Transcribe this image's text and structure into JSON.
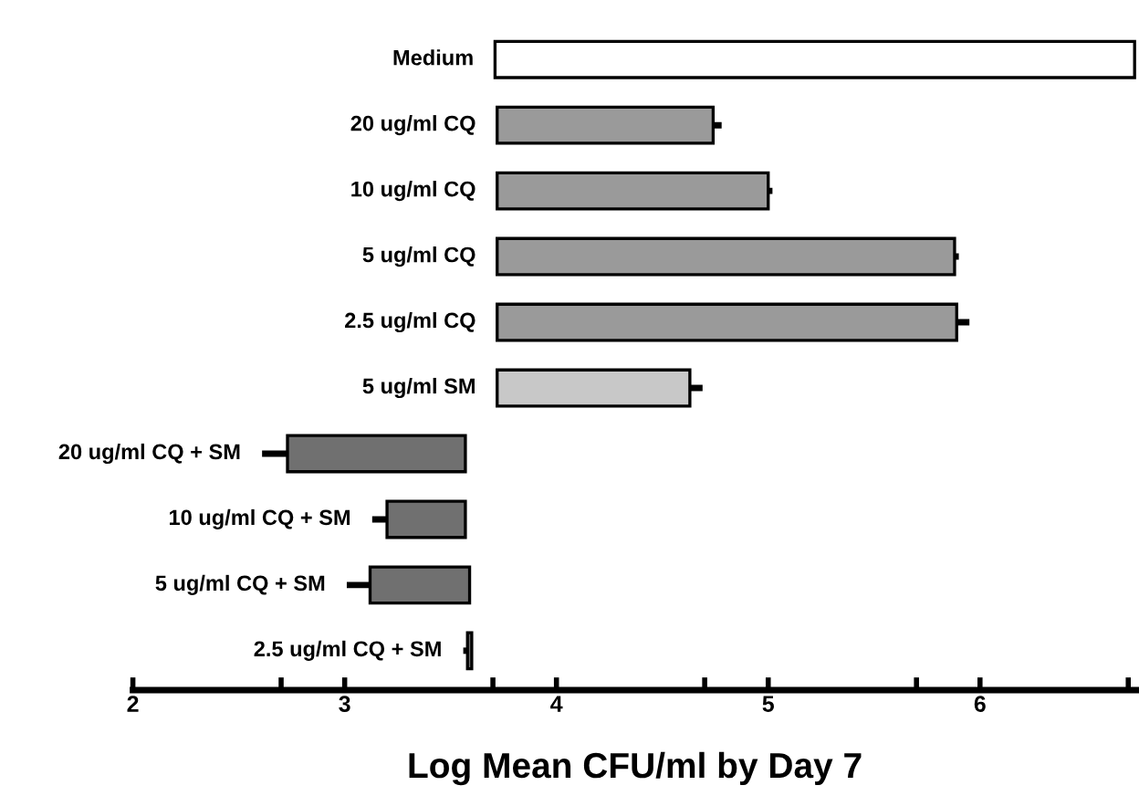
{
  "chart_data": {
    "type": "bar",
    "orientation": "horizontal",
    "xlabel": "Log Mean CFU/ml by Day 7",
    "categories": [
      "Medium",
      "20 ug/ml CQ",
      "10 ug/ml CQ",
      "5 ug/ml CQ",
      "2.5 ug/ml CQ",
      "5 ug/ml SM",
      "20 ug/ml CQ + SM",
      "10 ug/ml CQ + SM",
      "5 ug/ml CQ + SM",
      "2.5 ug/ml CQ + SM"
    ],
    "base": [
      3.71,
      3.72,
      3.72,
      3.72,
      3.72,
      3.72,
      3.57,
      3.57,
      3.59,
      3.6
    ],
    "values": [
      3.02,
      1.02,
      1.28,
      2.16,
      2.17,
      0.91,
      -0.84,
      -0.37,
      -0.47,
      -0.02
    ],
    "errors": [
      null,
      0.04,
      0.02,
      0.02,
      0.06,
      0.06,
      0.12,
      0.07,
      0.11,
      0.02
    ],
    "colors": [
      "#ffffff",
      "#9a9a9a",
      "#9a9a9a",
      "#9a9a9a",
      "#9a9a9a",
      "#c8c8c8",
      "#707070",
      "#707070",
      "#707070",
      "#707070"
    ],
    "xlim": [
      2,
      6.74
    ],
    "xticks": [
      2,
      3,
      4,
      5,
      6,
      {
        "value": 2.7,
        "label": null
      },
      {
        "value": 3.7,
        "label": null
      },
      {
        "value": 4.7,
        "label": null
      },
      {
        "value": 5.7,
        "label": null
      },
      {
        "value": 6.7,
        "label": null
      }
    ],
    "grid": false,
    "legend": false
  }
}
